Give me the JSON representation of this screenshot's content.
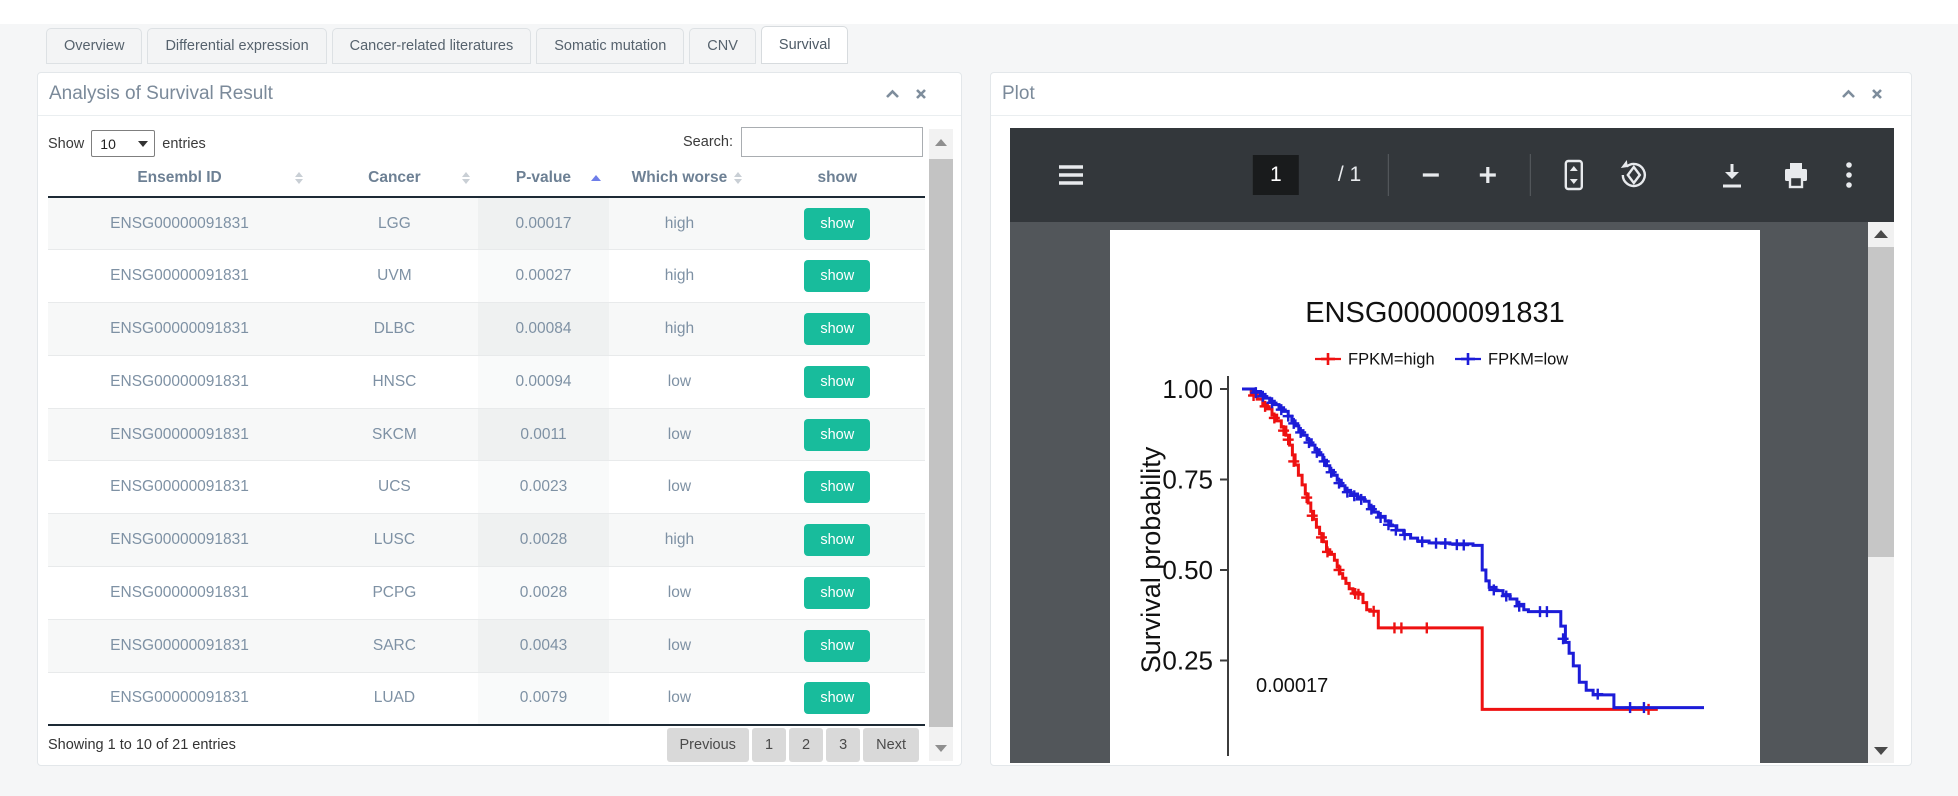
{
  "tabs": [
    {
      "id": "overview",
      "label": "Overview",
      "active": false
    },
    {
      "id": "differential-expression",
      "label": "Differential expression",
      "active": false
    },
    {
      "id": "cancer-related-literatures",
      "label": "Cancer-related literatures",
      "active": false
    },
    {
      "id": "somatic-mutation",
      "label": "Somatic mutation",
      "active": false
    },
    {
      "id": "cnv",
      "label": "CNV",
      "active": false
    },
    {
      "id": "survival",
      "label": "Survival",
      "active": true
    }
  ],
  "survival_panel": {
    "title": "Analysis of Survival Result",
    "header_icons": [
      "collapse-icon",
      "close-icon"
    ],
    "controls": {
      "show_label": "Show",
      "page_length": "10",
      "entries_label": "entries",
      "search_label": "Search:",
      "search_value": ""
    },
    "table": {
      "columns": [
        {
          "label": "Ensembl ID",
          "sort": "both"
        },
        {
          "label": "Cancer",
          "sort": "both"
        },
        {
          "label": "P-value",
          "sort": "asc"
        },
        {
          "label": "Which worse",
          "sort": "both"
        },
        {
          "label": "show",
          "sort": "none"
        }
      ],
      "sorted_column_index": 2,
      "rows": [
        {
          "ensembl_id": "ENSG00000091831",
          "cancer": "LGG",
          "p_value": "0.00017",
          "which_worse": "high",
          "action": "show"
        },
        {
          "ensembl_id": "ENSG00000091831",
          "cancer": "UVM",
          "p_value": "0.00027",
          "which_worse": "high",
          "action": "show"
        },
        {
          "ensembl_id": "ENSG00000091831",
          "cancer": "DLBC",
          "p_value": "0.00084",
          "which_worse": "high",
          "action": "show"
        },
        {
          "ensembl_id": "ENSG00000091831",
          "cancer": "HNSC",
          "p_value": "0.00094",
          "which_worse": "low",
          "action": "show"
        },
        {
          "ensembl_id": "ENSG00000091831",
          "cancer": "SKCM",
          "p_value": "0.0011",
          "which_worse": "low",
          "action": "show"
        },
        {
          "ensembl_id": "ENSG00000091831",
          "cancer": "UCS",
          "p_value": "0.0023",
          "which_worse": "low",
          "action": "show"
        },
        {
          "ensembl_id": "ENSG00000091831",
          "cancer": "LUSC",
          "p_value": "0.0028",
          "which_worse": "high",
          "action": "show"
        },
        {
          "ensembl_id": "ENSG00000091831",
          "cancer": "PCPG",
          "p_value": "0.0028",
          "which_worse": "low",
          "action": "show"
        },
        {
          "ensembl_id": "ENSG00000091831",
          "cancer": "SARC",
          "p_value": "0.0043",
          "which_worse": "low",
          "action": "show"
        },
        {
          "ensembl_id": "ENSG00000091831",
          "cancer": "LUAD",
          "p_value": "0.0079",
          "which_worse": "low",
          "action": "show"
        }
      ]
    },
    "footer": {
      "summary": "Showing 1 to 10 of 21 entries",
      "pagination": [
        "Previous",
        "1",
        "2",
        "3",
        "Next"
      ]
    }
  },
  "plot_panel": {
    "title": "Plot",
    "header_icons": [
      "collapse-icon",
      "close-icon"
    ],
    "pdf_toolbar": {
      "page_current": "1",
      "page_separator": "/",
      "page_total": "1",
      "icons": [
        "menu-icon",
        "zoom-out-icon",
        "zoom-in-icon",
        "fit-page-icon",
        "rotate-icon",
        "download-icon",
        "print-icon",
        "more-options-icon"
      ]
    }
  },
  "colors": {
    "accent_button": "#18bc9c",
    "sort_active": "#6e7ee9",
    "km_high": "#ee1111",
    "km_low": "#1c1cd8",
    "pdf_toolbar_bg": "#33373b",
    "pdf_background": "#52565a"
  },
  "chart_data": {
    "type": "line",
    "subtype": "kaplan-meier-step",
    "title": "ENSG00000091831",
    "ylabel": "Survival probability",
    "ytick_labels": [
      "1.00",
      "0.75",
      "0.50",
      "0.25"
    ],
    "yticks": [
      1.0,
      0.75,
      0.5,
      0.25
    ],
    "ylim": [
      0,
      1.05
    ],
    "x_normalized_range": [
      0,
      1
    ],
    "grid": false,
    "legend_position": "top",
    "pvalue_label": "0.00017",
    "series": [
      {
        "name": "FPKM=high",
        "color": "#ee1111",
        "points": [
          [
            0,
            1.0
          ],
          [
            0.02,
            0.985
          ],
          [
            0.033,
            0.972
          ],
          [
            0.045,
            0.958
          ],
          [
            0.055,
            0.945
          ],
          [
            0.065,
            0.928
          ],
          [
            0.075,
            0.912
          ],
          [
            0.085,
            0.895
          ],
          [
            0.095,
            0.872
          ],
          [
            0.103,
            0.845
          ],
          [
            0.109,
            0.818
          ],
          [
            0.115,
            0.79
          ],
          [
            0.122,
            0.762
          ],
          [
            0.13,
            0.735
          ],
          [
            0.137,
            0.71
          ],
          [
            0.143,
            0.685
          ],
          [
            0.149,
            0.662
          ],
          [
            0.155,
            0.64
          ],
          [
            0.161,
            0.618
          ],
          [
            0.168,
            0.6
          ],
          [
            0.176,
            0.578
          ],
          [
            0.183,
            0.556
          ],
          [
            0.19,
            0.543
          ],
          [
            0.2,
            0.527
          ],
          [
            0.206,
            0.508
          ],
          [
            0.212,
            0.49
          ],
          [
            0.218,
            0.477
          ],
          [
            0.225,
            0.463
          ],
          [
            0.232,
            0.448
          ],
          [
            0.24,
            0.437
          ],
          [
            0.255,
            0.433
          ],
          [
            0.262,
            0.41
          ],
          [
            0.27,
            0.39
          ],
          [
            0.278,
            0.386
          ],
          [
            0.29,
            0.386
          ],
          [
            0.295,
            0.34
          ],
          [
            0.52,
            0.34
          ],
          [
            0.52,
            0.115
          ],
          [
            0.9,
            0.115
          ]
        ],
        "censors": [
          [
            0.025,
            0.982
          ],
          [
            0.05,
            0.952
          ],
          [
            0.07,
            0.92
          ],
          [
            0.09,
            0.885
          ],
          [
            0.1,
            0.86
          ],
          [
            0.112,
            0.8
          ],
          [
            0.14,
            0.7
          ],
          [
            0.152,
            0.65
          ],
          [
            0.172,
            0.59
          ],
          [
            0.185,
            0.55
          ],
          [
            0.21,
            0.5
          ],
          [
            0.245,
            0.435
          ],
          [
            0.252,
            0.433
          ],
          [
            0.285,
            0.386
          ],
          [
            0.33,
            0.34
          ],
          [
            0.345,
            0.34
          ],
          [
            0.4,
            0.34
          ],
          [
            0.88,
            0.115
          ]
        ]
      },
      {
        "name": "FPKM=low",
        "color": "#1c1cd8",
        "points": [
          [
            0,
            1.0
          ],
          [
            0.025,
            0.993
          ],
          [
            0.04,
            0.985
          ],
          [
            0.05,
            0.975
          ],
          [
            0.06,
            0.966
          ],
          [
            0.07,
            0.957
          ],
          [
            0.08,
            0.948
          ],
          [
            0.09,
            0.938
          ],
          [
            0.1,
            0.925
          ],
          [
            0.108,
            0.912
          ],
          [
            0.115,
            0.898
          ],
          [
            0.123,
            0.885
          ],
          [
            0.132,
            0.872
          ],
          [
            0.141,
            0.86
          ],
          [
            0.15,
            0.845
          ],
          [
            0.158,
            0.832
          ],
          [
            0.167,
            0.818
          ],
          [
            0.175,
            0.803
          ],
          [
            0.183,
            0.788
          ],
          [
            0.19,
            0.775
          ],
          [
            0.198,
            0.762
          ],
          [
            0.206,
            0.748
          ],
          [
            0.215,
            0.733
          ],
          [
            0.223,
            0.72
          ],
          [
            0.235,
            0.71
          ],
          [
            0.25,
            0.7
          ],
          [
            0.265,
            0.69
          ],
          [
            0.275,
            0.675
          ],
          [
            0.285,
            0.66
          ],
          [
            0.295,
            0.648
          ],
          [
            0.31,
            0.635
          ],
          [
            0.322,
            0.622
          ],
          [
            0.335,
            0.61
          ],
          [
            0.35,
            0.598
          ],
          [
            0.365,
            0.588
          ],
          [
            0.38,
            0.58
          ],
          [
            0.405,
            0.575
          ],
          [
            0.45,
            0.572
          ],
          [
            0.5,
            0.568
          ],
          [
            0.52,
            0.5
          ],
          [
            0.528,
            0.47
          ],
          [
            0.535,
            0.452
          ],
          [
            0.55,
            0.443
          ],
          [
            0.565,
            0.432
          ],
          [
            0.58,
            0.42
          ],
          [
            0.595,
            0.405
          ],
          [
            0.61,
            0.39
          ],
          [
            0.62,
            0.385
          ],
          [
            0.685,
            0.385
          ],
          [
            0.69,
            0.345
          ],
          [
            0.7,
            0.3
          ],
          [
            0.708,
            0.27
          ],
          [
            0.717,
            0.235
          ],
          [
            0.73,
            0.19
          ],
          [
            0.745,
            0.168
          ],
          [
            0.76,
            0.155
          ],
          [
            0.8,
            0.155
          ],
          [
            0.805,
            0.12
          ],
          [
            1.0,
            0.12
          ]
        ],
        "censors": [
          [
            0.03,
            0.99
          ],
          [
            0.045,
            0.98
          ],
          [
            0.065,
            0.962
          ],
          [
            0.085,
            0.943
          ],
          [
            0.1,
            0.925
          ],
          [
            0.112,
            0.905
          ],
          [
            0.127,
            0.88
          ],
          [
            0.145,
            0.852
          ],
          [
            0.162,
            0.825
          ],
          [
            0.178,
            0.8
          ],
          [
            0.193,
            0.77
          ],
          [
            0.21,
            0.74
          ],
          [
            0.228,
            0.715
          ],
          [
            0.243,
            0.705
          ],
          [
            0.258,
            0.695
          ],
          [
            0.28,
            0.668
          ],
          [
            0.3,
            0.645
          ],
          [
            0.317,
            0.625
          ],
          [
            0.333,
            0.61
          ],
          [
            0.352,
            0.597
          ],
          [
            0.39,
            0.578
          ],
          [
            0.42,
            0.574
          ],
          [
            0.44,
            0.573
          ],
          [
            0.465,
            0.57
          ],
          [
            0.48,
            0.569
          ],
          [
            0.545,
            0.445
          ],
          [
            0.572,
            0.428
          ],
          [
            0.6,
            0.4
          ],
          [
            0.645,
            0.385
          ],
          [
            0.66,
            0.385
          ],
          [
            0.695,
            0.31
          ],
          [
            0.77,
            0.157
          ],
          [
            0.84,
            0.12
          ],
          [
            0.87,
            0.12
          ]
        ]
      }
    ]
  }
}
